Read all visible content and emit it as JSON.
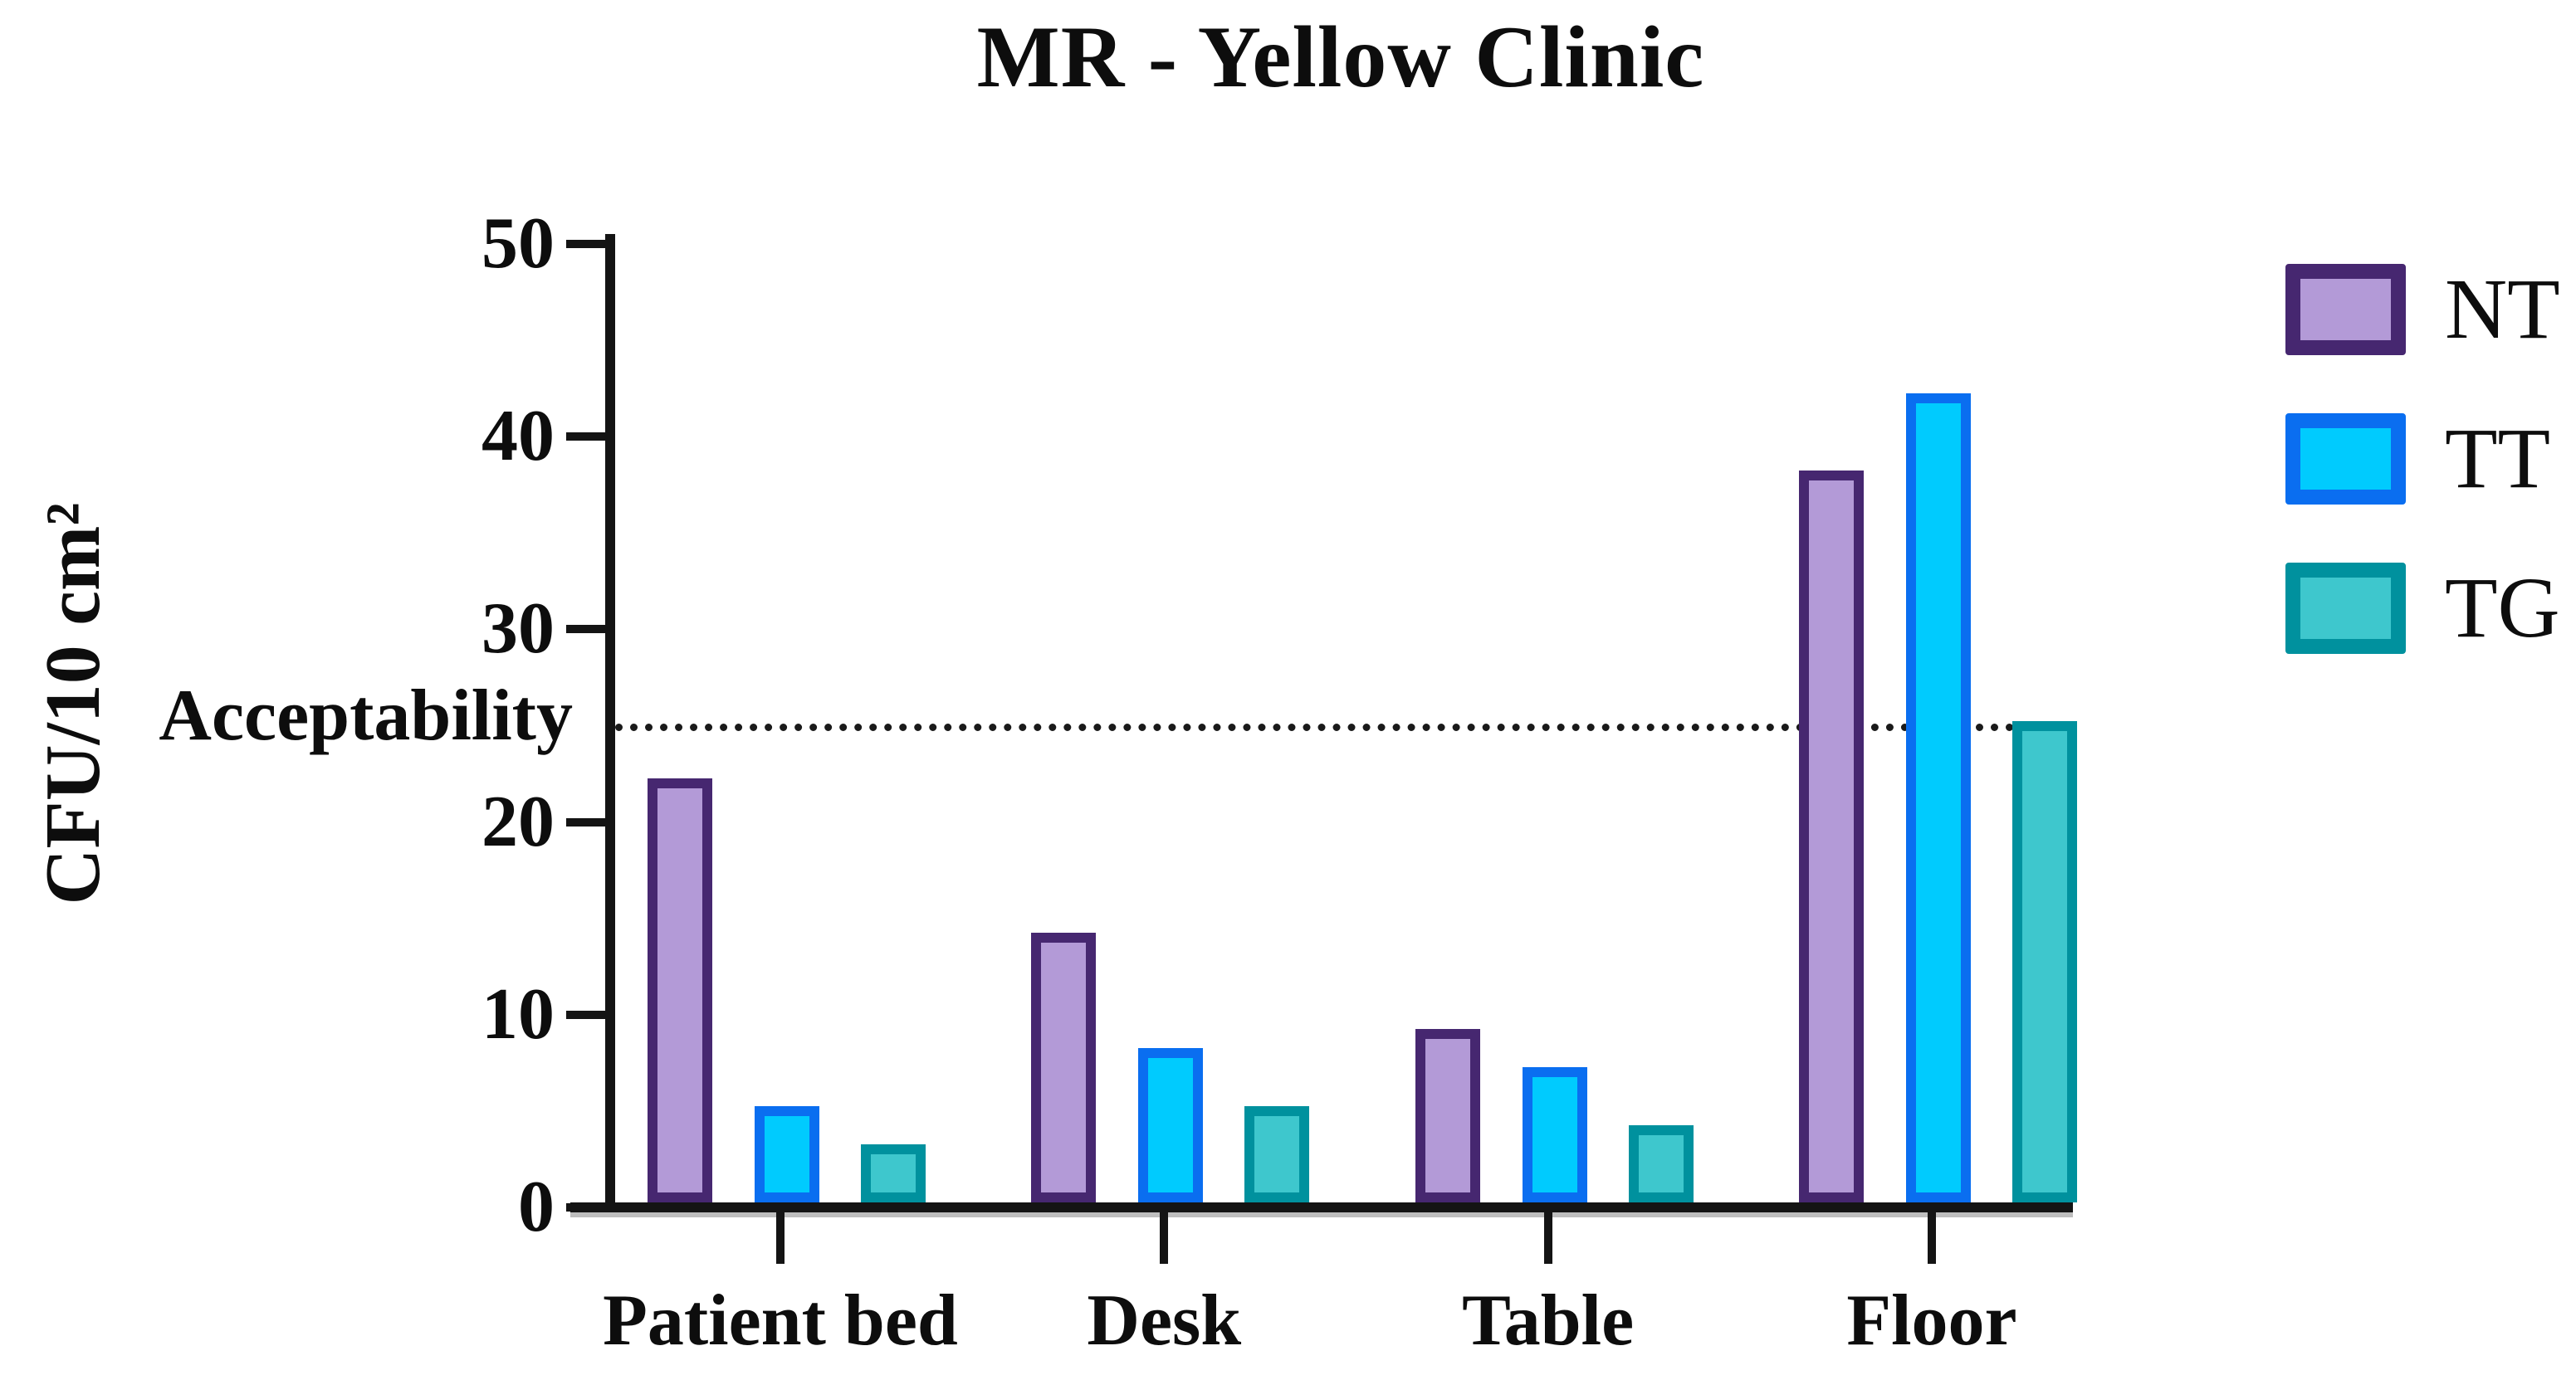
{
  "title": "MR - Yellow Clinic",
  "y_axis_label": "CFU/10 cm²",
  "acceptability_label": "Acceptability",
  "chart_data": {
    "type": "bar",
    "title": "MR - Yellow Clinic",
    "categories": [
      "Patient bed",
      "Desk",
      "Table",
      "Floor"
    ],
    "series": [
      {
        "name": "NT",
        "values": [
          22,
          14,
          9,
          38
        ],
        "fill": "#b39ad7",
        "border": "#462770"
      },
      {
        "name": "TT",
        "values": [
          5,
          8,
          7,
          42
        ],
        "fill": "#00cbfe",
        "border": "#0a6ef0"
      },
      {
        "name": "TG",
        "values": [
          3,
          5,
          4,
          25
        ],
        "fill": "#3ec7cd",
        "border": "#00919e"
      }
    ],
    "xlabel": "",
    "ylabel": "CFU/10 cm²",
    "ylim": [
      0,
      50
    ],
    "yticks": [
      0,
      10,
      20,
      30,
      40,
      50
    ],
    "grid": false,
    "legend_position": "right",
    "annotations": [
      {
        "type": "hline",
        "value": 25,
        "label": "Acceptability",
        "style": "dotted",
        "color": "#1a1a1a"
      }
    ],
    "axis_color": "#141414"
  }
}
